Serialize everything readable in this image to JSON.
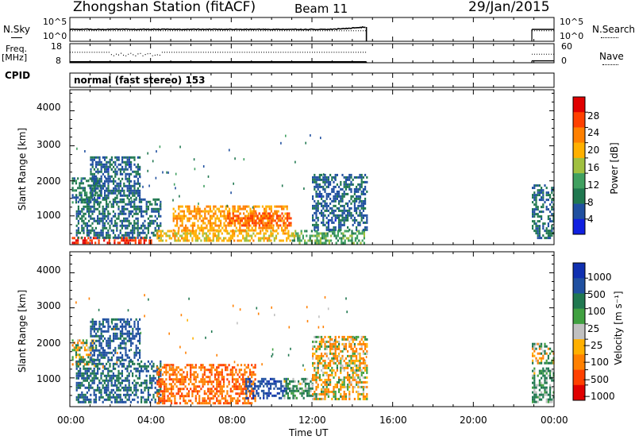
{
  "header": {
    "station": "Zhongshan Station (fitACF)",
    "beam": "Beam 11",
    "date": "29/Jan/2015"
  },
  "noise_panel": {
    "left_label": "N.Sky",
    "right_label": "N.Search",
    "left_ticks": [
      "10^5",
      "10^0"
    ],
    "right_ticks": [
      "10^5",
      "10^0"
    ]
  },
  "freq_panel": {
    "left_label_line1": "Freq.",
    "left_label_line2": "[MHz]",
    "left_ticks": [
      "18",
      "8"
    ],
    "right_label": "Nave",
    "right_ticks": [
      "60",
      "0"
    ]
  },
  "cpid": {
    "label": "CPID",
    "mode": "normal (fast stereo) 153"
  },
  "power_panel": {
    "ylabel": "Slant Range [km]",
    "yticks": [
      "4000",
      "3000",
      "2000",
      "1000"
    ],
    "colorbar_label": "Power [dB]",
    "colorbar_ticks": [
      "28",
      "24",
      "20",
      "16",
      "12",
      "8",
      "4"
    ],
    "colorbar_colors": [
      "#e00000",
      "#ff4000",
      "#ff8000",
      "#ffb000",
      "#a0c040",
      "#40a060",
      "#207850",
      "#2050a0",
      "#1020e0"
    ]
  },
  "velocity_panel": {
    "ylabel": "Slant Range [km]",
    "yticks": [
      "4000",
      "3000",
      "2000",
      "1000"
    ],
    "colorbar_label": "Velocity [m s⁻¹]",
    "colorbar_ticks": [
      "1000",
      "500",
      "100",
      "25",
      "−25",
      "−100",
      "−500",
      "−1000"
    ],
    "colorbar_colors": [
      "#1030b0",
      "#2050a0",
      "#207850",
      "#40a040",
      "#c0c0c0",
      "#ffb000",
      "#ff8000",
      "#ff4000",
      "#e00000"
    ]
  },
  "xaxis": {
    "label": "Time UT",
    "ticks": [
      "00:00",
      "04:00",
      "08:00",
      "12:00",
      "16:00",
      "20:00",
      "00:00"
    ]
  },
  "chart_data": {
    "type": "heatmap",
    "title": "Zhongshan Station (fitACF) Beam 11",
    "xlabel": "Time UT",
    "ylabel": "Slant Range [km]",
    "xlim_hours": [
      0,
      24
    ],
    "ylim_km": [
      180,
      4600
    ],
    "panels": [
      {
        "name": "Power [dB]",
        "scale": [
          0,
          30
        ],
        "regions": [
          {
            "t0": 0.1,
            "t1": 1.5,
            "r0": 1400,
            "r1": 2100,
            "value": 8
          },
          {
            "t0": 0.1,
            "t1": 4.0,
            "r0": 200,
            "r1": 400,
            "value": 26
          },
          {
            "t0": 0.3,
            "t1": 4.5,
            "r0": 400,
            "r1": 1500,
            "value": 7
          },
          {
            "t0": 1.0,
            "t1": 3.5,
            "r0": 1500,
            "r1": 2700,
            "value": 6
          },
          {
            "t0": 4.3,
            "t1": 11.2,
            "r0": 300,
            "r1": 600,
            "value": 18
          },
          {
            "t0": 5.1,
            "t1": 10.8,
            "r0": 600,
            "r1": 1300,
            "value": 20
          },
          {
            "t0": 7.8,
            "t1": 11.0,
            "r0": 700,
            "r1": 1100,
            "value": 24
          },
          {
            "t0": 11.0,
            "t1": 14.6,
            "r0": 200,
            "r1": 600,
            "value": 12
          },
          {
            "t0": 12.0,
            "t1": 14.7,
            "r0": 600,
            "r1": 2200,
            "value": 6
          },
          {
            "t0": 22.9,
            "t1": 24.0,
            "r0": 400,
            "r1": 1900,
            "value": 7
          }
        ]
      },
      {
        "name": "Velocity [m s-1]",
        "scale": [
          -1000,
          1000
        ],
        "regions": [
          {
            "t0": 0.1,
            "t1": 1.2,
            "r0": 1400,
            "r1": 2100,
            "value": 0
          },
          {
            "t0": 0.3,
            "t1": 4.5,
            "r0": 300,
            "r1": 1500,
            "value": 500
          },
          {
            "t0": 1.0,
            "t1": 3.5,
            "r0": 1500,
            "r1": 2700,
            "value": 600
          },
          {
            "t0": 4.3,
            "t1": 9.2,
            "r0": 300,
            "r1": 1400,
            "value": -450
          },
          {
            "t0": 8.7,
            "t1": 10.7,
            "r0": 400,
            "r1": 1000,
            "value": 900
          },
          {
            "t0": 10.6,
            "t1": 12.0,
            "r0": 400,
            "r1": 1000,
            "value": 150
          },
          {
            "t0": 12.0,
            "t1": 14.7,
            "r0": 400,
            "r1": 2200,
            "value": -60
          },
          {
            "t0": 22.9,
            "t1": 24.0,
            "r0": 1400,
            "r1": 2000,
            "value": 0
          },
          {
            "t0": 22.9,
            "t1": 24.0,
            "r0": 300,
            "r1": 1300,
            "value": 150
          }
        ]
      }
    ],
    "noise_sky_log": {
      "t0": 0.0,
      "t1": 14.7,
      "value": 2.5,
      "restart": 22.9
    },
    "frequency_mhz": {
      "t0": 0.0,
      "t1": 14.7,
      "value": 10.5,
      "restart": 22.9
    }
  }
}
